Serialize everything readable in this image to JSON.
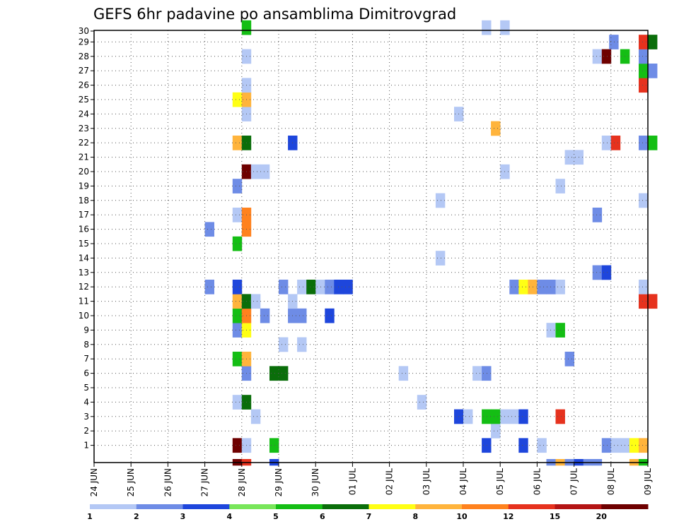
{
  "chart_data": {
    "type": "heatmap",
    "title": "GEFS 6hr padavine po ansamblima Dimitrovgrad",
    "xlabel": "",
    "ylabel": "",
    "x_ticks": [
      "24 JUN",
      "25 JUN",
      "26 JUN",
      "27 JUN",
      "28 JUN",
      "29 JUN",
      "30 JUN",
      "01 JUL",
      "02 JUL",
      "03 JUL",
      "04 JUL",
      "05 JUL",
      "06 JUL",
      "07 JUL",
      "08 JUL",
      "09 JUL"
    ],
    "y_ticks": [
      1,
      2,
      3,
      4,
      5,
      6,
      7,
      8,
      9,
      10,
      11,
      12,
      13,
      14,
      15,
      16,
      17,
      18,
      19,
      20,
      21,
      22,
      23,
      24,
      25,
      26,
      27,
      28,
      29,
      30
    ],
    "x_range_days": [
      0,
      15
    ],
    "y_range": [
      0,
      30
    ],
    "grid": "dotted",
    "colorbar": {
      "labels": [
        "1",
        "2",
        "3",
        "4",
        "5",
        "6",
        "7",
        "8",
        "10",
        "12",
        "15",
        "20"
      ],
      "colors": [
        "#b4c8f5",
        "#6e8ce6",
        "#1e46dc",
        "#78e65a",
        "#14be14",
        "#0a6e0a",
        "#ffff14",
        "#ffb43c",
        "#ff821e",
        "#e6321e",
        "#b41414",
        "#6e0000"
      ]
    },
    "cells_note": "each cell: [day_offset_from_24_JUN_00z, member, color_index 0-11]",
    "cells": [
      [
        3.75,
        1,
        11
      ],
      [
        4.0,
        1,
        0
      ],
      [
        4.75,
        1,
        4
      ],
      [
        10.5,
        1,
        2
      ],
      [
        11.5,
        1,
        2
      ],
      [
        12.0,
        1,
        0
      ],
      [
        13.75,
        1,
        1
      ],
      [
        14.0,
        1,
        0
      ],
      [
        14.25,
        1,
        0
      ],
      [
        14.5,
        1,
        6
      ],
      [
        14.75,
        1,
        7
      ],
      [
        3.75,
        0,
        11
      ],
      [
        4.0,
        0,
        9
      ],
      [
        4.75,
        0,
        2
      ],
      [
        12.25,
        0,
        1
      ],
      [
        12.5,
        0,
        7
      ],
      [
        12.75,
        0,
        1
      ],
      [
        13.0,
        0,
        2
      ],
      [
        13.25,
        0,
        1
      ],
      [
        13.5,
        0,
        1
      ],
      [
        14.5,
        0,
        7
      ],
      [
        14.75,
        0,
        4
      ],
      [
        10.75,
        2,
        0
      ],
      [
        4.25,
        3,
        0
      ],
      [
        9.75,
        3,
        2
      ],
      [
        10.0,
        3,
        0
      ],
      [
        10.5,
        3,
        4
      ],
      [
        10.75,
        3,
        4
      ],
      [
        11.0,
        3,
        0
      ],
      [
        11.25,
        3,
        0
      ],
      [
        11.5,
        3,
        2
      ],
      [
        12.5,
        3,
        9
      ],
      [
        3.75,
        4,
        0
      ],
      [
        4.0,
        4,
        5
      ],
      [
        8.75,
        4,
        0
      ],
      [
        4.0,
        6,
        1
      ],
      [
        4.75,
        6,
        5
      ],
      [
        5.0,
        6,
        5
      ],
      [
        8.25,
        6,
        0
      ],
      [
        10.25,
        6,
        0
      ],
      [
        10.5,
        6,
        1
      ],
      [
        3.75,
        7,
        4
      ],
      [
        4.0,
        7,
        7
      ],
      [
        12.75,
        7,
        1
      ],
      [
        5.0,
        8,
        0
      ],
      [
        5.5,
        8,
        0
      ],
      [
        3.75,
        9,
        1
      ],
      [
        4.0,
        9,
        6
      ],
      [
        12.25,
        9,
        0
      ],
      [
        12.5,
        9,
        4
      ],
      [
        3.75,
        10,
        4
      ],
      [
        4.0,
        10,
        8
      ],
      [
        4.5,
        10,
        1
      ],
      [
        5.25,
        10,
        1
      ],
      [
        5.5,
        10,
        1
      ],
      [
        6.25,
        10,
        2
      ],
      [
        3.75,
        11,
        7
      ],
      [
        4.0,
        11,
        5
      ],
      [
        4.25,
        11,
        0
      ],
      [
        5.25,
        11,
        0
      ],
      [
        14.75,
        11,
        9
      ],
      [
        15.0,
        11,
        9
      ],
      [
        3.0,
        12,
        1
      ],
      [
        3.75,
        12,
        2
      ],
      [
        5.0,
        12,
        1
      ],
      [
        5.5,
        12,
        0
      ],
      [
        5.75,
        12,
        5
      ],
      [
        6.0,
        12,
        0
      ],
      [
        6.25,
        12,
        1
      ],
      [
        6.5,
        12,
        2
      ],
      [
        6.75,
        12,
        2
      ],
      [
        11.25,
        12,
        1
      ],
      [
        11.5,
        12,
        6
      ],
      [
        11.75,
        12,
        7
      ],
      [
        12.0,
        12,
        1
      ],
      [
        12.25,
        12,
        1
      ],
      [
        12.5,
        12,
        0
      ],
      [
        14.75,
        12,
        0
      ],
      [
        13.5,
        13,
        1
      ],
      [
        13.75,
        13,
        2
      ],
      [
        9.25,
        14,
        0
      ],
      [
        3.75,
        15,
        4
      ],
      [
        3.0,
        16,
        1
      ],
      [
        4.0,
        16,
        8
      ],
      [
        3.75,
        17,
        0
      ],
      [
        4.0,
        17,
        8
      ],
      [
        13.5,
        17,
        1
      ],
      [
        9.25,
        18,
        0
      ],
      [
        14.75,
        18,
        0
      ],
      [
        3.75,
        19,
        1
      ],
      [
        12.5,
        19,
        0
      ],
      [
        4.0,
        20,
        11
      ],
      [
        4.25,
        20,
        0
      ],
      [
        4.5,
        20,
        0
      ],
      [
        11.0,
        20,
        0
      ],
      [
        12.75,
        21,
        0
      ],
      [
        13.0,
        21,
        0
      ],
      [
        3.75,
        22,
        7
      ],
      [
        4.0,
        22,
        5
      ],
      [
        5.25,
        22,
        2
      ],
      [
        13.75,
        22,
        0
      ],
      [
        14.0,
        22,
        9
      ],
      [
        14.75,
        22,
        1
      ],
      [
        15.0,
        22,
        4
      ],
      [
        10.75,
        23,
        7
      ],
      [
        4.0,
        24,
        0
      ],
      [
        9.75,
        24,
        0
      ],
      [
        3.75,
        25,
        6
      ],
      [
        4.0,
        25,
        7
      ],
      [
        4.0,
        26,
        0
      ],
      [
        14.75,
        26,
        9
      ],
      [
        14.75,
        27,
        4
      ],
      [
        15.0,
        27,
        1
      ],
      [
        4.0,
        28,
        0
      ],
      [
        13.5,
        28,
        0
      ],
      [
        13.75,
        28,
        11
      ],
      [
        14.25,
        28,
        4
      ],
      [
        14.75,
        28,
        1
      ],
      [
        13.95,
        29,
        1
      ],
      [
        14.75,
        29,
        9
      ],
      [
        15.0,
        29,
        5
      ],
      [
        4.0,
        30,
        4
      ],
      [
        10.5,
        30,
        0
      ],
      [
        11.0,
        30,
        0
      ]
    ]
  }
}
